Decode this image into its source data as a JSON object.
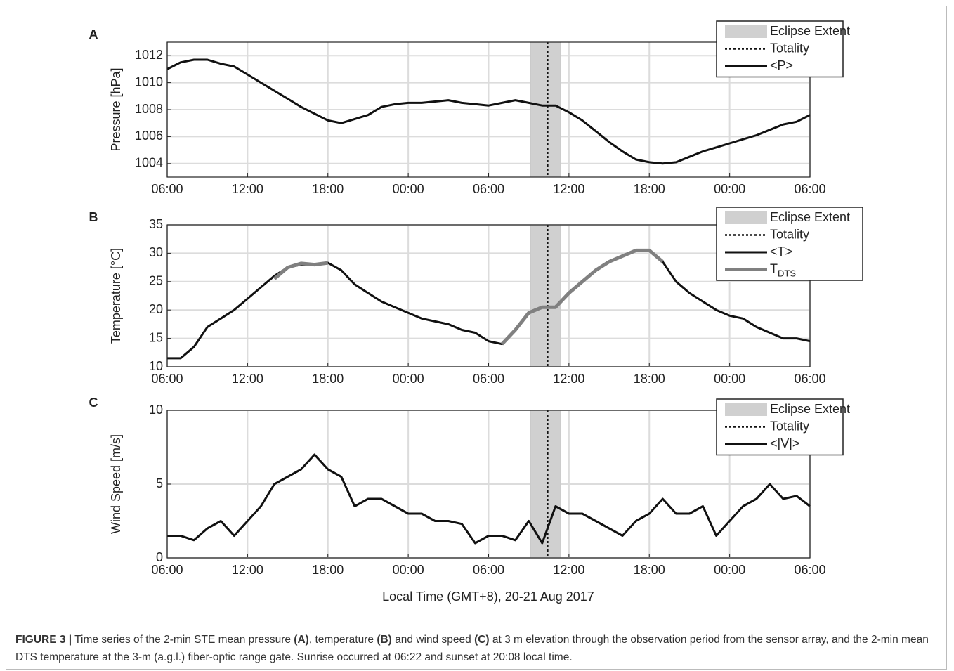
{
  "chart_data": [
    {
      "type": "line",
      "panel": "A",
      "ylabel": "Pressure [hPa]",
      "x": [
        0,
        1,
        2,
        3,
        4,
        5,
        6,
        7,
        8,
        9,
        10,
        11,
        12,
        13,
        14,
        15,
        16,
        17,
        18,
        19,
        20,
        21,
        22,
        23,
        24,
        25,
        26,
        27,
        28,
        29,
        30,
        31,
        32,
        33,
        34,
        35,
        36,
        37,
        38,
        39,
        40,
        41,
        42,
        43,
        44,
        45,
        46,
        47,
        48
      ],
      "series": [
        {
          "name": "<P>",
          "color": "#111111",
          "values": [
            1011.0,
            1011.5,
            1011.7,
            1011.7,
            1011.4,
            1011.2,
            1010.6,
            1010.0,
            1009.4,
            1008.8,
            1008.2,
            1007.7,
            1007.2,
            1007.0,
            1007.3,
            1007.6,
            1008.2,
            1008.4,
            1008.5,
            1008.5,
            1008.6,
            1008.7,
            1008.5,
            1008.4,
            1008.3,
            1008.5,
            1008.7,
            1008.5,
            1008.3,
            1008.3,
            1007.8,
            1007.2,
            1006.4,
            1005.6,
            1004.9,
            1004.3,
            1004.1,
            1004.0,
            1004.1,
            1004.5,
            1004.9,
            1005.2,
            1005.5,
            1005.8,
            1006.1,
            1006.5,
            1006.9,
            1007.1,
            1007.6
          ]
        }
      ],
      "eclipse": {
        "name": "Eclipse Extent",
        "range": [
          27.1,
          29.4
        ],
        "color": "#d0d0d0"
      },
      "totality": {
        "name": "Totality",
        "x": 28.4
      },
      "xlim": [
        0,
        48
      ],
      "xticks": [
        {
          "value": 0,
          "label": "06:00"
        },
        {
          "value": 6,
          "label": "12:00"
        },
        {
          "value": 12,
          "label": "18:00"
        },
        {
          "value": 18,
          "label": "00:00"
        },
        {
          "value": 24,
          "label": "06:00"
        },
        {
          "value": 30,
          "label": "12:00"
        },
        {
          "value": 36,
          "label": "18:00"
        },
        {
          "value": 42,
          "label": "00:00"
        },
        {
          "value": 48,
          "label": "06:00"
        }
      ],
      "ylim": [
        1003,
        1013
      ],
      "yticks": [
        1004,
        1006,
        1008,
        1010,
        1012
      ],
      "grid": true
    },
    {
      "type": "line",
      "panel": "B",
      "ylabel": "Temperature [°C]",
      "x": [
        0,
        1,
        2,
        3,
        4,
        5,
        6,
        7,
        8,
        9,
        10,
        11,
        12,
        13,
        14,
        15,
        16,
        17,
        18,
        19,
        20,
        21,
        22,
        23,
        24,
        25,
        26,
        27,
        28,
        29,
        30,
        31,
        32,
        33,
        34,
        35,
        36,
        37,
        38,
        39,
        40,
        41,
        42,
        43,
        44,
        45,
        46,
        47,
        48
      ],
      "series": [
        {
          "name": "<T>",
          "color": "#111111",
          "values": [
            11.5,
            11.5,
            13.5,
            17,
            18.5,
            20,
            22,
            24,
            26,
            27.5,
            28,
            28,
            28.3,
            27,
            24.5,
            23,
            21.5,
            20.5,
            19.5,
            18.5,
            18,
            17.5,
            16.5,
            16,
            14.5,
            14,
            16.5,
            19.5,
            20.5,
            20.5,
            23,
            25,
            27,
            28.5,
            29.5,
            30.5,
            30.5,
            28.5,
            25,
            23,
            21.5,
            20,
            19,
            18.5,
            17,
            16,
            15,
            15,
            14.5
          ]
        },
        {
          "name": "T",
          "name_subscript": "DTS",
          "color": "#808080",
          "values": [
            null,
            null,
            null,
            null,
            null,
            null,
            null,
            null,
            25.5,
            27.5,
            28.2,
            28,
            28.3,
            null,
            null,
            null,
            null,
            null,
            null,
            null,
            null,
            null,
            null,
            null,
            null,
            14,
            16.5,
            19.5,
            20.5,
            20.5,
            23,
            25,
            27,
            28.5,
            29.5,
            30.5,
            30.5,
            28.5,
            null,
            null,
            null,
            null,
            null,
            null,
            null,
            null,
            null,
            null,
            null
          ]
        }
      ],
      "eclipse": {
        "name": "Eclipse Extent",
        "range": [
          27.1,
          29.4
        ],
        "color": "#d0d0d0"
      },
      "totality": {
        "name": "Totality",
        "x": 28.4
      },
      "xlim": [
        0,
        48
      ],
      "xticks": [
        {
          "value": 0,
          "label": "06:00"
        },
        {
          "value": 6,
          "label": "12:00"
        },
        {
          "value": 12,
          "label": "18:00"
        },
        {
          "value": 18,
          "label": "00:00"
        },
        {
          "value": 24,
          "label": "06:00"
        },
        {
          "value": 30,
          "label": "12:00"
        },
        {
          "value": 36,
          "label": "18:00"
        },
        {
          "value": 42,
          "label": "00:00"
        },
        {
          "value": 48,
          "label": "06:00"
        }
      ],
      "ylim": [
        10,
        35
      ],
      "yticks": [
        10,
        15,
        20,
        25,
        30,
        35
      ],
      "grid": true
    },
    {
      "type": "line",
      "panel": "C",
      "ylabel": "Wind Speed [m/s]",
      "x": [
        0,
        1,
        2,
        3,
        4,
        5,
        6,
        7,
        8,
        9,
        10,
        11,
        12,
        13,
        14,
        15,
        16,
        17,
        18,
        19,
        20,
        21,
        22,
        23,
        24,
        25,
        26,
        27,
        28,
        29,
        30,
        31,
        32,
        33,
        34,
        35,
        36,
        37,
        38,
        39,
        40,
        41,
        42,
        43,
        44,
        45,
        46,
        47,
        48
      ],
      "series": [
        {
          "name": "<|V|>",
          "color": "#111111",
          "values": [
            1.5,
            1.5,
            1.2,
            2,
            2.5,
            1.5,
            2.5,
            3.5,
            5,
            5.5,
            6,
            7,
            6,
            5.5,
            3.5,
            4,
            4,
            3.5,
            3,
            3,
            2.5,
            2.5,
            2.3,
            1,
            1.5,
            1.5,
            1.2,
            2.5,
            1,
            3.5,
            3,
            3,
            2.5,
            2,
            1.5,
            2.5,
            3,
            4,
            3,
            3,
            3.5,
            1.5,
            2.5,
            3.5,
            4,
            5,
            4,
            4.2,
            3.5
          ]
        }
      ],
      "eclipse": {
        "name": "Eclipse Extent",
        "range": [
          27.1,
          29.4
        ],
        "color": "#d0d0d0"
      },
      "totality": {
        "name": "Totality",
        "x": 28.4
      },
      "xlim": [
        0,
        48
      ],
      "xticks": [
        {
          "value": 0,
          "label": "06:00"
        },
        {
          "value": 6,
          "label": "12:00"
        },
        {
          "value": 12,
          "label": "18:00"
        },
        {
          "value": 18,
          "label": "00:00"
        },
        {
          "value": 24,
          "label": "06:00"
        },
        {
          "value": 30,
          "label": "12:00"
        },
        {
          "value": 36,
          "label": "18:00"
        },
        {
          "value": 42,
          "label": "00:00"
        },
        {
          "value": 48,
          "label": "06:00"
        }
      ],
      "ylim": [
        0,
        10
      ],
      "yticks": [
        0,
        5,
        10
      ],
      "grid": true,
      "xlabel": "Local Time (GMT+8),  20-21 Aug 2017"
    }
  ],
  "caption": [
    {
      "text": "FIGURE 3 |",
      "bold": true
    },
    {
      "text": " Time series of the 2-min STE mean pressure ",
      "bold": false
    },
    {
      "text": "(A)",
      "bold": true
    },
    {
      "text": ", temperature ",
      "bold": false
    },
    {
      "text": "(B)",
      "bold": true
    },
    {
      "text": " and wind speed ",
      "bold": false
    },
    {
      "text": "(C)",
      "bold": true
    },
    {
      "text": " at 3 m elevation through the observation period from the sensor array, and the 2-min mean DTS temperature at the 3-m (a.g.l.) fiber-optic range gate. Sunrise occurred at 06:22 and sunset at 20:08 local time.",
      "bold": false
    }
  ]
}
